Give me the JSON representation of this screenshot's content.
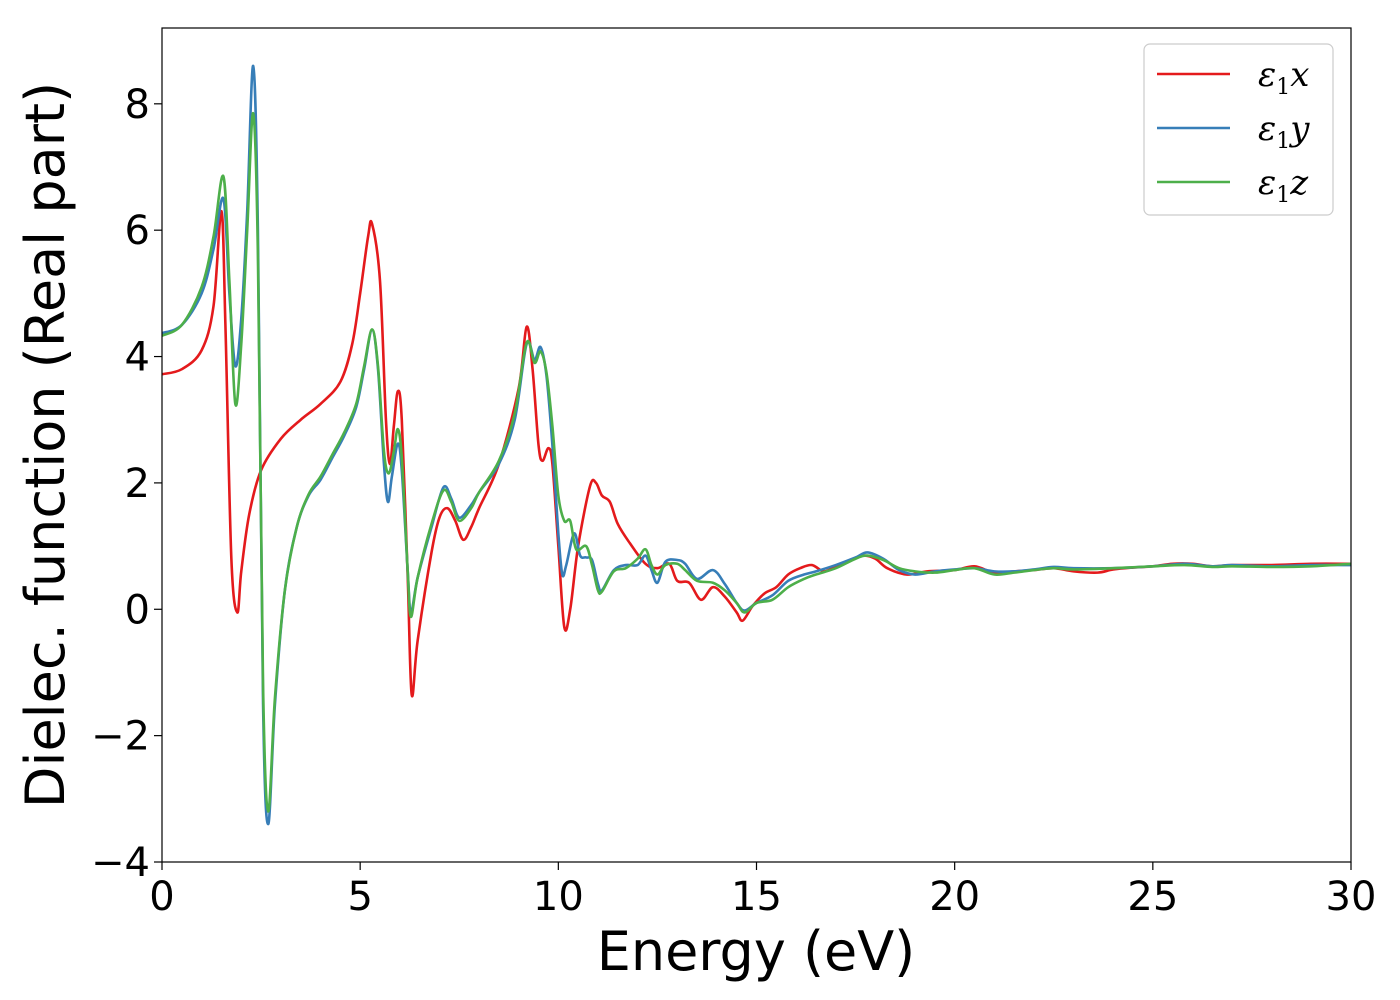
{
  "chart_data": {
    "type": "line",
    "xlabel": "Energy (eV)",
    "ylabel": "Dielec. function (Real part)",
    "xlim": [
      0,
      30
    ],
    "ylim": [
      -4,
      9.2
    ],
    "xticks": [
      0,
      5,
      10,
      15,
      20,
      25,
      30
    ],
    "yticks": [
      -4,
      -2,
      0,
      2,
      4,
      6,
      8
    ],
    "xtick_labels": [
      "0",
      "5",
      "10",
      "15",
      "20",
      "25",
      "30"
    ],
    "ytick_labels": [
      "−4",
      "−2",
      "0",
      "2",
      "4",
      "6",
      "8"
    ],
    "grid": false,
    "legend_position": "top-right",
    "series": [
      {
        "name": "ε1x",
        "legend": {
          "base": "ε",
          "sub": "1",
          "suffix": "x"
        },
        "color": "#e41a1c",
        "points": [
          [
            0,
            3.72
          ],
          [
            0.5,
            3.8
          ],
          [
            1.0,
            4.1
          ],
          [
            1.3,
            4.8
          ],
          [
            1.5,
            6.3
          ],
          [
            1.6,
            4.5
          ],
          [
            1.75,
            0.8
          ],
          [
            1.9,
            -0.05
          ],
          [
            2.0,
            0.6
          ],
          [
            2.2,
            1.5
          ],
          [
            2.5,
            2.2
          ],
          [
            3.0,
            2.7
          ],
          [
            3.5,
            3.0
          ],
          [
            4.0,
            3.25
          ],
          [
            4.5,
            3.6
          ],
          [
            4.8,
            4.2
          ],
          [
            5.0,
            5.0
          ],
          [
            5.2,
            5.9
          ],
          [
            5.3,
            6.1
          ],
          [
            5.5,
            5.2
          ],
          [
            5.65,
            3.0
          ],
          [
            5.75,
            2.3
          ],
          [
            5.85,
            2.9
          ],
          [
            5.95,
            3.45
          ],
          [
            6.05,
            3.0
          ],
          [
            6.2,
            0.5
          ],
          [
            6.3,
            -1.35
          ],
          [
            6.45,
            -0.5
          ],
          [
            6.8,
            0.9
          ],
          [
            7.0,
            1.45
          ],
          [
            7.2,
            1.6
          ],
          [
            7.4,
            1.4
          ],
          [
            7.6,
            1.1
          ],
          [
            7.8,
            1.3
          ],
          [
            8.0,
            1.6
          ],
          [
            8.5,
            2.3
          ],
          [
            9.0,
            3.5
          ],
          [
            9.2,
            4.47
          ],
          [
            9.35,
            3.8
          ],
          [
            9.5,
            2.6
          ],
          [
            9.6,
            2.35
          ],
          [
            9.75,
            2.55
          ],
          [
            9.85,
            2.3
          ],
          [
            10.0,
            1.0
          ],
          [
            10.15,
            -0.28
          ],
          [
            10.3,
            0.0
          ],
          [
            10.5,
            1.0
          ],
          [
            10.8,
            1.95
          ],
          [
            10.95,
            2.0
          ],
          [
            11.1,
            1.8
          ],
          [
            11.3,
            1.7
          ],
          [
            11.5,
            1.35
          ],
          [
            11.8,
            1.05
          ],
          [
            12.2,
            0.72
          ],
          [
            12.5,
            0.65
          ],
          [
            12.8,
            0.72
          ],
          [
            13.0,
            0.45
          ],
          [
            13.3,
            0.42
          ],
          [
            13.6,
            0.15
          ],
          [
            13.9,
            0.35
          ],
          [
            14.2,
            0.2
          ],
          [
            14.5,
            -0.05
          ],
          [
            14.65,
            -0.18
          ],
          [
            14.9,
            0.05
          ],
          [
            15.2,
            0.25
          ],
          [
            15.5,
            0.35
          ],
          [
            15.8,
            0.55
          ],
          [
            16.1,
            0.65
          ],
          [
            16.4,
            0.7
          ],
          [
            16.7,
            0.6
          ],
          [
            17.0,
            0.68
          ],
          [
            17.4,
            0.78
          ],
          [
            17.7,
            0.85
          ],
          [
            18.0,
            0.8
          ],
          [
            18.3,
            0.65
          ],
          [
            18.8,
            0.55
          ],
          [
            19.3,
            0.6
          ],
          [
            20.0,
            0.62
          ],
          [
            20.5,
            0.68
          ],
          [
            21.0,
            0.58
          ],
          [
            21.5,
            0.6
          ],
          [
            22.0,
            0.62
          ],
          [
            22.5,
            0.65
          ],
          [
            23.0,
            0.6
          ],
          [
            23.6,
            0.58
          ],
          [
            24.0,
            0.63
          ],
          [
            24.5,
            0.66
          ],
          [
            25.0,
            0.68
          ],
          [
            25.5,
            0.72
          ],
          [
            26.0,
            0.72
          ],
          [
            26.5,
            0.68
          ],
          [
            27.0,
            0.7
          ],
          [
            28.0,
            0.7
          ],
          [
            29.0,
            0.72
          ],
          [
            30.0,
            0.72
          ]
        ]
      },
      {
        "name": "ε1y",
        "legend": {
          "base": "ε",
          "sub": "1",
          "suffix": "y"
        },
        "color": "#377eb8",
        "points": [
          [
            0,
            4.37
          ],
          [
            0.5,
            4.5
          ],
          [
            1.0,
            5.0
          ],
          [
            1.3,
            5.7
          ],
          [
            1.55,
            6.5
          ],
          [
            1.7,
            5.0
          ],
          [
            1.85,
            3.85
          ],
          [
            2.0,
            4.6
          ],
          [
            2.15,
            6.3
          ],
          [
            2.3,
            8.6
          ],
          [
            2.42,
            6.0
          ],
          [
            2.55,
            -1.5
          ],
          [
            2.68,
            -3.4
          ],
          [
            2.85,
            -1.5
          ],
          [
            3.1,
            0.3
          ],
          [
            3.4,
            1.3
          ],
          [
            3.7,
            1.8
          ],
          [
            4.0,
            2.05
          ],
          [
            4.3,
            2.4
          ],
          [
            4.6,
            2.75
          ],
          [
            4.9,
            3.2
          ],
          [
            5.1,
            3.8
          ],
          [
            5.3,
            4.42
          ],
          [
            5.45,
            3.8
          ],
          [
            5.6,
            2.3
          ],
          [
            5.7,
            1.7
          ],
          [
            5.8,
            2.1
          ],
          [
            5.95,
            2.62
          ],
          [
            6.05,
            2.2
          ],
          [
            6.2,
            0.6
          ],
          [
            6.28,
            -0.05
          ],
          [
            6.45,
            0.5
          ],
          [
            6.8,
            1.3
          ],
          [
            7.1,
            1.93
          ],
          [
            7.3,
            1.75
          ],
          [
            7.5,
            1.45
          ],
          [
            7.8,
            1.65
          ],
          [
            8.0,
            1.85
          ],
          [
            8.5,
            2.3
          ],
          [
            8.9,
            3.0
          ],
          [
            9.2,
            4.2
          ],
          [
            9.4,
            3.95
          ],
          [
            9.55,
            4.15
          ],
          [
            9.7,
            3.7
          ],
          [
            9.85,
            2.6
          ],
          [
            10.0,
            1.2
          ],
          [
            10.1,
            0.55
          ],
          [
            10.2,
            0.7
          ],
          [
            10.4,
            1.2
          ],
          [
            10.55,
            0.85
          ],
          [
            10.7,
            0.82
          ],
          [
            10.85,
            0.78
          ],
          [
            11.0,
            0.4
          ],
          [
            11.1,
            0.3
          ],
          [
            11.4,
            0.62
          ],
          [
            11.7,
            0.7
          ],
          [
            12.0,
            0.7
          ],
          [
            12.2,
            0.85
          ],
          [
            12.35,
            0.62
          ],
          [
            12.5,
            0.42
          ],
          [
            12.7,
            0.75
          ],
          [
            13.0,
            0.78
          ],
          [
            13.2,
            0.72
          ],
          [
            13.5,
            0.48
          ],
          [
            13.9,
            0.62
          ],
          [
            14.2,
            0.4
          ],
          [
            14.5,
            0.1
          ],
          [
            14.7,
            -0.02
          ],
          [
            15.0,
            0.1
          ],
          [
            15.4,
            0.22
          ],
          [
            15.8,
            0.45
          ],
          [
            16.2,
            0.55
          ],
          [
            16.5,
            0.6
          ],
          [
            17.0,
            0.7
          ],
          [
            17.5,
            0.82
          ],
          [
            17.8,
            0.9
          ],
          [
            18.2,
            0.8
          ],
          [
            18.6,
            0.62
          ],
          [
            19.0,
            0.55
          ],
          [
            19.5,
            0.6
          ],
          [
            20.0,
            0.63
          ],
          [
            20.5,
            0.65
          ],
          [
            21.0,
            0.6
          ],
          [
            21.5,
            0.6
          ],
          [
            22.0,
            0.63
          ],
          [
            22.5,
            0.67
          ],
          [
            23.0,
            0.65
          ],
          [
            24.0,
            0.65
          ],
          [
            25.0,
            0.68
          ],
          [
            25.8,
            0.72
          ],
          [
            26.5,
            0.68
          ],
          [
            27.0,
            0.7
          ],
          [
            28.0,
            0.68
          ],
          [
            29.0,
            0.7
          ],
          [
            30.0,
            0.7
          ]
        ]
      },
      {
        "name": "ε1z",
        "legend": {
          "base": "ε",
          "sub": "1",
          "suffix": "z"
        },
        "color": "#4daf4a",
        "points": [
          [
            0,
            4.33
          ],
          [
            0.5,
            4.5
          ],
          [
            1.0,
            5.1
          ],
          [
            1.3,
            5.9
          ],
          [
            1.55,
            6.85
          ],
          [
            1.7,
            5.2
          ],
          [
            1.85,
            3.25
          ],
          [
            2.0,
            4.2
          ],
          [
            2.15,
            6.0
          ],
          [
            2.3,
            7.85
          ],
          [
            2.42,
            5.6
          ],
          [
            2.55,
            -1.2
          ],
          [
            2.68,
            -3.2
          ],
          [
            2.85,
            -1.4
          ],
          [
            3.1,
            0.3
          ],
          [
            3.4,
            1.3
          ],
          [
            3.7,
            1.82
          ],
          [
            4.0,
            2.1
          ],
          [
            4.3,
            2.45
          ],
          [
            4.6,
            2.8
          ],
          [
            4.9,
            3.25
          ],
          [
            5.1,
            3.85
          ],
          [
            5.3,
            4.43
          ],
          [
            5.45,
            3.85
          ],
          [
            5.6,
            2.5
          ],
          [
            5.72,
            2.15
          ],
          [
            5.85,
            2.5
          ],
          [
            5.95,
            2.85
          ],
          [
            6.05,
            2.4
          ],
          [
            6.2,
            0.6
          ],
          [
            6.28,
            -0.12
          ],
          [
            6.45,
            0.5
          ],
          [
            6.8,
            1.35
          ],
          [
            7.1,
            1.88
          ],
          [
            7.3,
            1.7
          ],
          [
            7.5,
            1.4
          ],
          [
            7.8,
            1.6
          ],
          [
            8.0,
            1.85
          ],
          [
            8.5,
            2.35
          ],
          [
            8.9,
            3.1
          ],
          [
            9.2,
            4.22
          ],
          [
            9.4,
            3.9
          ],
          [
            9.55,
            4.08
          ],
          [
            9.7,
            3.75
          ],
          [
            9.85,
            2.9
          ],
          [
            10.0,
            1.8
          ],
          [
            10.15,
            1.4
          ],
          [
            10.3,
            1.4
          ],
          [
            10.45,
            0.95
          ],
          [
            10.7,
            1.0
          ],
          [
            10.85,
            0.7
          ],
          [
            11.0,
            0.3
          ],
          [
            11.1,
            0.28
          ],
          [
            11.4,
            0.6
          ],
          [
            11.7,
            0.65
          ],
          [
            12.0,
            0.8
          ],
          [
            12.2,
            0.95
          ],
          [
            12.35,
            0.7
          ],
          [
            12.5,
            0.55
          ],
          [
            12.7,
            0.7
          ],
          [
            13.0,
            0.72
          ],
          [
            13.2,
            0.62
          ],
          [
            13.5,
            0.45
          ],
          [
            13.9,
            0.42
          ],
          [
            14.2,
            0.3
          ],
          [
            14.5,
            0.1
          ],
          [
            14.7,
            -0.05
          ],
          [
            15.0,
            0.1
          ],
          [
            15.4,
            0.15
          ],
          [
            15.8,
            0.35
          ],
          [
            16.2,
            0.48
          ],
          [
            16.5,
            0.55
          ],
          [
            17.0,
            0.65
          ],
          [
            17.5,
            0.8
          ],
          [
            17.8,
            0.85
          ],
          [
            18.2,
            0.78
          ],
          [
            18.6,
            0.65
          ],
          [
            19.0,
            0.6
          ],
          [
            19.5,
            0.58
          ],
          [
            20.0,
            0.62
          ],
          [
            20.5,
            0.65
          ],
          [
            21.0,
            0.55
          ],
          [
            21.5,
            0.58
          ],
          [
            22.0,
            0.62
          ],
          [
            22.5,
            0.65
          ],
          [
            23.0,
            0.63
          ],
          [
            24.0,
            0.65
          ],
          [
            25.0,
            0.68
          ],
          [
            25.8,
            0.7
          ],
          [
            26.5,
            0.67
          ],
          [
            27.0,
            0.68
          ],
          [
            28.0,
            0.67
          ],
          [
            29.0,
            0.68
          ],
          [
            30.0,
            0.72
          ]
        ]
      }
    ]
  }
}
